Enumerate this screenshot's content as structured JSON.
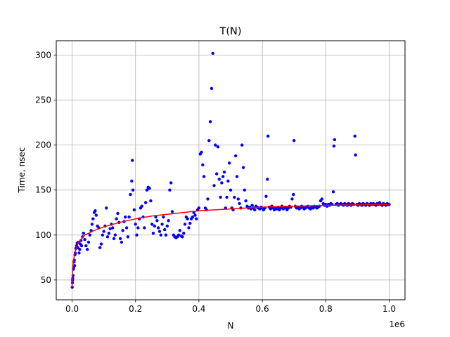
{
  "chart_data": {
    "type": "scatter",
    "title": "T(N)",
    "xlabel": "N",
    "ylabel": "Time, nsec",
    "x_offset_label": "1e6",
    "xlim": [
      -50000,
      1050000
    ],
    "ylim": [
      28,
      316
    ],
    "xticks": [
      0,
      200000,
      400000,
      600000,
      800000,
      1000000
    ],
    "xtick_labels": [
      "0.0",
      "0.2",
      "0.4",
      "0.6",
      "0.8",
      "1.0"
    ],
    "yticks": [
      50,
      100,
      150,
      200,
      250,
      300
    ],
    "ytick_labels": [
      "50",
      "100",
      "150",
      "200",
      "250",
      "300"
    ],
    "grid": true,
    "colors": {
      "scatter": "#0000ff",
      "fit": "#ff0000",
      "grid": "#b0b0b0"
    },
    "series": [
      {
        "kind": "scatter",
        "points": [
          [
            500,
            42
          ],
          [
            1000,
            47
          ],
          [
            1500,
            50
          ],
          [
            2000,
            52
          ],
          [
            3000,
            55
          ],
          [
            4000,
            62
          ],
          [
            5000,
            64
          ],
          [
            6000,
            70
          ],
          [
            7000,
            72
          ],
          [
            8000,
            66
          ],
          [
            9000,
            78
          ],
          [
            10000,
            80
          ],
          [
            12000,
            85
          ],
          [
            14000,
            88
          ],
          [
            16000,
            91
          ],
          [
            18000,
            86
          ],
          [
            20000,
            92
          ],
          [
            22000,
            80
          ],
          [
            24000,
            84
          ],
          [
            26000,
            90
          ],
          [
            28000,
            94
          ],
          [
            30000,
            88
          ],
          [
            33000,
            98
          ],
          [
            36000,
            102
          ],
          [
            40000,
            95
          ],
          [
            44000,
            88
          ],
          [
            48000,
            84
          ],
          [
            52000,
            92
          ],
          [
            56000,
            100
          ],
          [
            60000,
            105
          ],
          [
            63000,
            112
          ],
          [
            66000,
            118
          ],
          [
            70000,
            125
          ],
          [
            73000,
            127
          ],
          [
            76000,
            122
          ],
          [
            80000,
            110
          ],
          [
            84000,
            108
          ],
          [
            88000,
            86
          ],
          [
            92000,
            90
          ],
          [
            96000,
            100
          ],
          [
            100000,
            104
          ],
          [
            104000,
            110
          ],
          [
            108000,
            130
          ],
          [
            112000,
            98
          ],
          [
            116000,
            102
          ],
          [
            120000,
            107
          ],
          [
            124000,
            112
          ],
          [
            128000,
            108
          ],
          [
            132000,
            96
          ],
          [
            136000,
            100
          ],
          [
            140000,
            118
          ],
          [
            144000,
            124
          ],
          [
            148000,
            114
          ],
          [
            152000,
            96
          ],
          [
            156000,
            92
          ],
          [
            160000,
            105
          ],
          [
            164000,
            115
          ],
          [
            168000,
            120
          ],
          [
            172000,
            108
          ],
          [
            176000,
            98
          ],
          [
            180000,
            120
          ],
          [
            184000,
            145
          ],
          [
            188000,
            160
          ],
          [
            190000,
            183
          ],
          [
            192000,
            150
          ],
          [
            196000,
            128
          ],
          [
            200000,
            112
          ],
          [
            204000,
            100
          ],
          [
            208000,
            108
          ],
          [
            212000,
            118
          ],
          [
            216000,
            130
          ],
          [
            220000,
            132
          ],
          [
            224000,
            120
          ],
          [
            228000,
            108
          ],
          [
            232000,
            136
          ],
          [
            236000,
            150
          ],
          [
            240000,
            153
          ],
          [
            244000,
            152
          ],
          [
            248000,
            138
          ],
          [
            252000,
            112
          ],
          [
            256000,
            102
          ],
          [
            260000,
            110
          ],
          [
            264000,
            120
          ],
          [
            268000,
            116
          ],
          [
            272000,
            108
          ],
          [
            276000,
            104
          ],
          [
            280000,
            100
          ],
          [
            284000,
            112
          ],
          [
            288000,
            120
          ],
          [
            292000,
            106
          ],
          [
            296000,
            100
          ],
          [
            300000,
            110
          ],
          [
            304000,
            116
          ],
          [
            308000,
            150
          ],
          [
            312000,
            158
          ],
          [
            316000,
            126
          ],
          [
            320000,
            100
          ],
          [
            324000,
            98
          ],
          [
            328000,
            97
          ],
          [
            332000,
            98
          ],
          [
            336000,
            100
          ],
          [
            340000,
            105
          ],
          [
            344000,
            99
          ],
          [
            348000,
            98
          ],
          [
            352000,
            102
          ],
          [
            356000,
            112
          ],
          [
            360000,
            120
          ],
          [
            364000,
            118
          ],
          [
            368000,
            108
          ],
          [
            372000,
            113
          ],
          [
            376000,
            118
          ],
          [
            380000,
            120
          ],
          [
            384000,
            125
          ],
          [
            388000,
            122
          ],
          [
            392000,
            118
          ],
          [
            396000,
            128
          ],
          [
            400000,
            130
          ],
          [
            404000,
            190
          ],
          [
            408000,
            192
          ],
          [
            412000,
            178
          ],
          [
            416000,
            165
          ],
          [
            420000,
            130
          ],
          [
            424000,
            128
          ],
          [
            428000,
            140
          ],
          [
            432000,
            205
          ],
          [
            436000,
            226
          ],
          [
            440000,
            263
          ],
          [
            444000,
            302
          ],
          [
            448000,
            155
          ],
          [
            452000,
            200
          ],
          [
            456000,
            168
          ],
          [
            460000,
            198
          ],
          [
            464000,
            162
          ],
          [
            468000,
            142
          ],
          [
            472000,
            158
          ],
          [
            476000,
            165
          ],
          [
            480000,
            170
          ],
          [
            484000,
            130
          ],
          [
            488000,
            142
          ],
          [
            492000,
            160
          ],
          [
            496000,
            180
          ],
          [
            500000,
            150
          ],
          [
            504000,
            130
          ],
          [
            508000,
            128
          ],
          [
            512000,
            142
          ],
          [
            516000,
            188
          ],
          [
            520000,
            165
          ],
          [
            524000,
            140
          ],
          [
            528000,
            135
          ],
          [
            532000,
            130
          ],
          [
            536000,
            200
          ],
          [
            540000,
            175
          ],
          [
            544000,
            150
          ],
          [
            548000,
            138
          ],
          [
            552000,
            132
          ],
          [
            556000,
            130
          ],
          [
            560000,
            131
          ],
          [
            564000,
            129
          ],
          [
            568000,
            133
          ],
          [
            572000,
            130
          ],
          [
            576000,
            128
          ],
          [
            580000,
            132
          ],
          [
            584000,
            131
          ],
          [
            588000,
            130
          ],
          [
            592000,
            129
          ],
          [
            596000,
            131
          ],
          [
            600000,
            130
          ],
          [
            604000,
            128
          ],
          [
            608000,
            130
          ],
          [
            612000,
            143
          ],
          [
            616000,
            162
          ],
          [
            618000,
            210
          ],
          [
            622000,
            131
          ],
          [
            626000,
            129
          ],
          [
            630000,
            132
          ],
          [
            634000,
            130
          ],
          [
            638000,
            128
          ],
          [
            642000,
            130
          ],
          [
            646000,
            129
          ],
          [
            650000,
            131
          ],
          [
            654000,
            128
          ],
          [
            658000,
            130
          ],
          [
            662000,
            132
          ],
          [
            666000,
            129
          ],
          [
            670000,
            130
          ],
          [
            674000,
            131
          ],
          [
            678000,
            128
          ],
          [
            682000,
            130
          ],
          [
            686000,
            132
          ],
          [
            690000,
            131
          ],
          [
            694000,
            140
          ],
          [
            698000,
            145
          ],
          [
            700000,
            205
          ],
          [
            704000,
            132
          ],
          [
            708000,
            130
          ],
          [
            712000,
            131
          ],
          [
            716000,
            129
          ],
          [
            720000,
            130
          ],
          [
            724000,
            132
          ],
          [
            728000,
            131
          ],
          [
            732000,
            129
          ],
          [
            736000,
            130
          ],
          [
            740000,
            131
          ],
          [
            744000,
            132
          ],
          [
            748000,
            130
          ],
          [
            752000,
            129
          ],
          [
            756000,
            131
          ],
          [
            760000,
            130
          ],
          [
            764000,
            132
          ],
          [
            768000,
            131
          ],
          [
            772000,
            130
          ],
          [
            776000,
            131
          ],
          [
            780000,
            132
          ],
          [
            784000,
            138
          ],
          [
            788000,
            140
          ],
          [
            792000,
            135
          ],
          [
            796000,
            133
          ],
          [
            800000,
            134
          ],
          [
            804000,
            132
          ],
          [
            808000,
            134
          ],
          [
            812000,
            133
          ],
          [
            816000,
            135
          ],
          [
            820000,
            134
          ],
          [
            824000,
            148
          ],
          [
            826000,
            199
          ],
          [
            828000,
            206
          ],
          [
            832000,
            134
          ],
          [
            836000,
            135
          ],
          [
            840000,
            133
          ],
          [
            844000,
            134
          ],
          [
            848000,
            135
          ],
          [
            852000,
            134
          ],
          [
            856000,
            133
          ],
          [
            860000,
            135
          ],
          [
            864000,
            134
          ],
          [
            868000,
            133
          ],
          [
            872000,
            135
          ],
          [
            876000,
            134
          ],
          [
            880000,
            133
          ],
          [
            884000,
            135
          ],
          [
            888000,
            134
          ],
          [
            892000,
            210
          ],
          [
            894000,
            189
          ],
          [
            898000,
            134
          ],
          [
            902000,
            133
          ],
          [
            906000,
            135
          ],
          [
            910000,
            134
          ],
          [
            914000,
            133
          ],
          [
            918000,
            135
          ],
          [
            922000,
            134
          ],
          [
            926000,
            133
          ],
          [
            930000,
            135
          ],
          [
            934000,
            134
          ],
          [
            938000,
            133
          ],
          [
            942000,
            135
          ],
          [
            946000,
            134
          ],
          [
            950000,
            135
          ],
          [
            954000,
            134
          ],
          [
            958000,
            133
          ],
          [
            962000,
            135
          ],
          [
            966000,
            134
          ],
          [
            970000,
            136
          ],
          [
            974000,
            134
          ],
          [
            978000,
            133
          ],
          [
            982000,
            135
          ],
          [
            986000,
            134
          ],
          [
            990000,
            133
          ],
          [
            994000,
            135
          ],
          [
            998000,
            134
          ],
          [
            1000000,
            134
          ]
        ]
      },
      {
        "kind": "line",
        "points": [
          [
            0,
            42
          ],
          [
            1000,
            58
          ],
          [
            3000,
            67
          ],
          [
            6000,
            75
          ],
          [
            10000,
            82
          ],
          [
            20000,
            92
          ],
          [
            40000,
            100
          ],
          [
            70000,
            105
          ],
          [
            100000,
            109
          ],
          [
            150000,
            114
          ],
          [
            200000,
            118
          ],
          [
            250000,
            121
          ],
          [
            300000,
            123
          ],
          [
            350000,
            125
          ],
          [
            400000,
            127
          ],
          [
            450000,
            128
          ],
          [
            500000,
            129
          ],
          [
            550000,
            130
          ],
          [
            600000,
            131
          ],
          [
            650000,
            131.5
          ],
          [
            700000,
            132
          ],
          [
            750000,
            132.5
          ],
          [
            800000,
            133
          ],
          [
            850000,
            133.3
          ],
          [
            900000,
            133.6
          ],
          [
            950000,
            133.8
          ],
          [
            1000000,
            134
          ]
        ]
      }
    ]
  }
}
